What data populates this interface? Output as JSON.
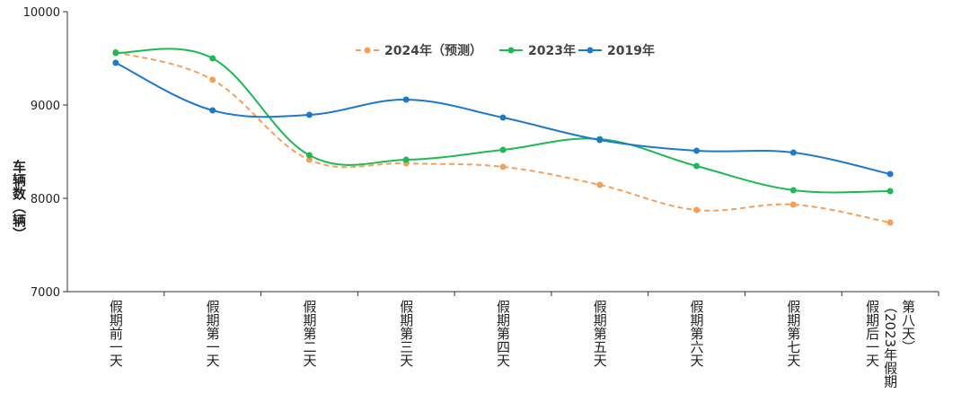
{
  "chart_data": {
    "type": "line",
    "title": "",
    "xlabel": "",
    "ylabel": "车辆数（辆）",
    "ylim": [
      7000,
      10000
    ],
    "yticks": [
      7000,
      8000,
      9000,
      10000
    ],
    "grid": false,
    "legend_position": "top-center",
    "categories": [
      "假期前一天",
      "假期第一天",
      "假期第二天",
      "假期第三天",
      "假期第四天",
      "假期第五天",
      "假期第六天",
      "假期第七天",
      "假期后一天（2023年假期第八天）"
    ],
    "category_lines": [
      [
        "假期前一天"
      ],
      [
        "假期第一天"
      ],
      [
        "假期第二天"
      ],
      [
        "假期第三天"
      ],
      [
        "假期第四天"
      ],
      [
        "假期第五天"
      ],
      [
        "假期第六天"
      ],
      [
        "假期第七天"
      ],
      [
        "假期后一天",
        "（2023年假期",
        "第八天）"
      ]
    ],
    "series": [
      {
        "name": "2024年（预测）",
        "color": "#f5a05a",
        "dashed": true,
        "values": [
          9567,
          9270,
          8413,
          8375,
          8337,
          8144,
          7875,
          7933,
          7740
        ]
      },
      {
        "name": "2023年",
        "color": "#1db954",
        "dashed": false,
        "values": [
          9558,
          9500,
          8462,
          8413,
          8519,
          8635,
          8346,
          8087,
          8077
        ]
      },
      {
        "name": "2019年",
        "color": "#1f78c8",
        "dashed": false,
        "values": [
          9452,
          8942,
          8894,
          9058,
          8865,
          8625,
          8510,
          8490,
          8260
        ]
      }
    ]
  }
}
